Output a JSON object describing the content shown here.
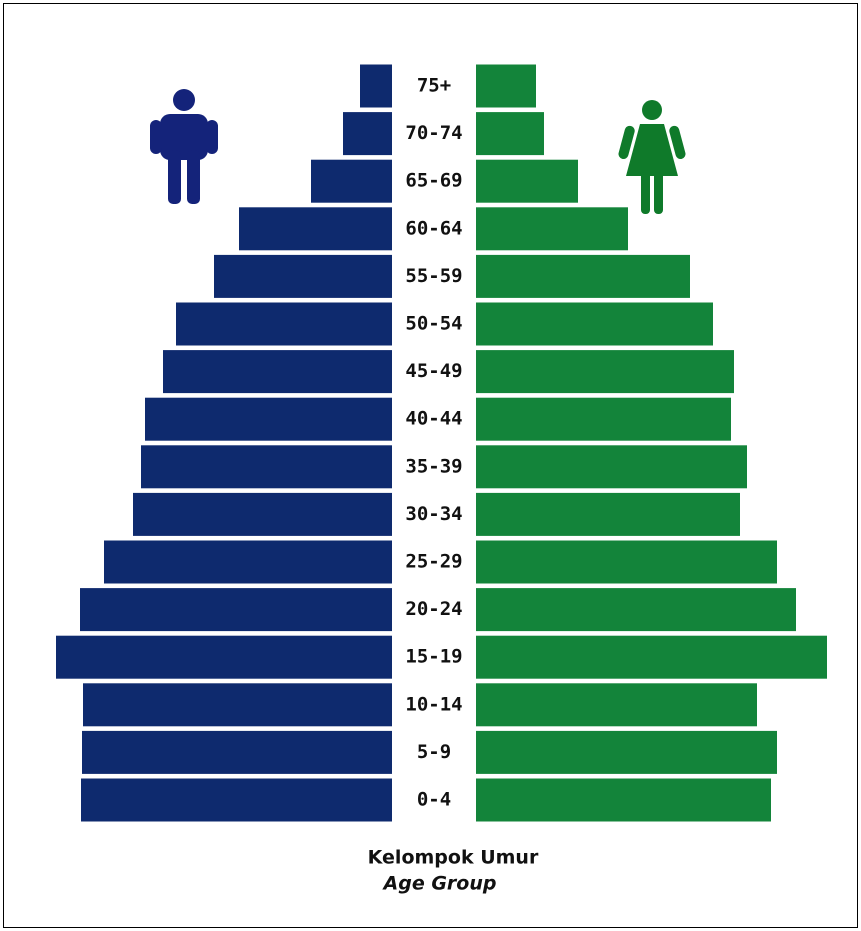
{
  "chart_data": {
    "type": "pyramid",
    "categories": [
      "0-4",
      "5-9",
      "10-14",
      "15-19",
      "20-24",
      "25-29",
      "30-34",
      "35-39",
      "40-44",
      "45-49",
      "50-54",
      "55-59",
      "60-64",
      "65-69",
      "70-74",
      "75+"
    ],
    "series": [
      {
        "color": "#0e2a6e",
        "values": [
          311,
          310,
          309,
          336,
          312,
          288,
          259,
          251,
          247,
          229,
          216,
          178,
          153,
          81,
          49,
          32
        ]
      },
      {
        "color": "#13843a",
        "values": [
          295,
          301,
          281,
          351,
          320,
          301,
          264,
          271,
          255,
          258,
          237,
          214,
          152,
          102,
          68,
          60
        ]
      }
    ],
    "xlim": [
      0,
      360
    ],
    "xlabel": "Kelompok Umur",
    "xlabel2": "Age Group"
  }
}
